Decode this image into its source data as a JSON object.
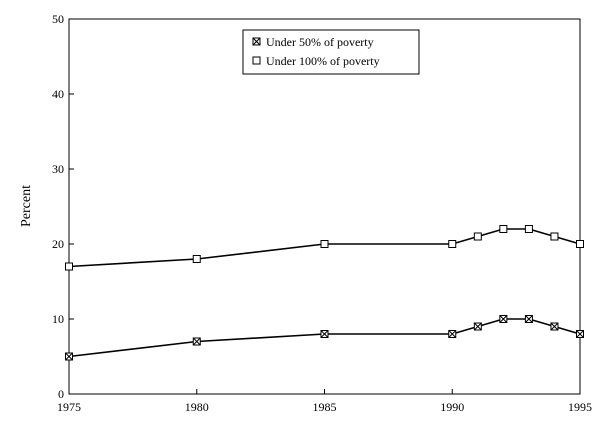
{
  "chart_data": {
    "type": "line",
    "title": "",
    "xlabel": "",
    "ylabel": "Percent",
    "xlim": [
      1975,
      1995
    ],
    "ylim": [
      0,
      50
    ],
    "x_ticks": [
      "1975",
      "1980",
      "1985",
      "1990",
      "1995"
    ],
    "y_ticks": [
      "0",
      "10",
      "20",
      "30",
      "40",
      "50"
    ],
    "grid": false,
    "legend_position": "top-center",
    "x": [
      1975,
      1980,
      1985,
      1990,
      1991,
      1992,
      1993,
      1994,
      1995
    ],
    "series": [
      {
        "name": "Under 50% of poverty",
        "marker": "square-crossed",
        "color": "#000000",
        "values": [
          5,
          7,
          8,
          8,
          9,
          10,
          10,
          9,
          8
        ]
      },
      {
        "name": "Under 100% of poverty",
        "marker": "square-open",
        "color": "#000000",
        "values": [
          17,
          18,
          20,
          20,
          21,
          22,
          22,
          21,
          20
        ]
      }
    ]
  }
}
